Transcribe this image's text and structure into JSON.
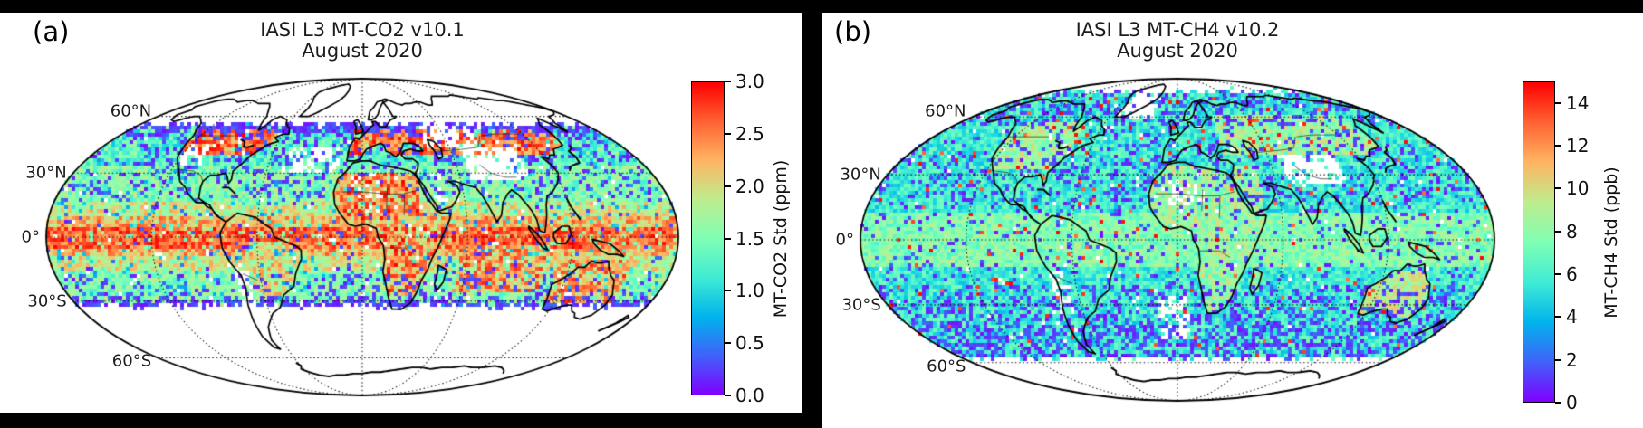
{
  "figure": {
    "background": "#000000",
    "panel_background": "#ffffff"
  },
  "panels": [
    {
      "label": "(a)",
      "title": "IASI L3 MT-CO2 v10.1",
      "subtitle": "August 2020",
      "lat_labels": [
        "60°N",
        "30°N",
        "0°",
        "30°S",
        "60°S"
      ],
      "colorbar": {
        "label": "MT-CO2 Std (ppm)",
        "ticks": [
          "3.0",
          "2.5",
          "2.0",
          "1.5",
          "1.0",
          "0.5",
          "0.0"
        ],
        "vmin": 0,
        "vmax": 3
      }
    },
    {
      "label": "(b)",
      "title": "IASI L3 MT-CH4 v10.2",
      "subtitle": "August 2020",
      "lat_labels": [
        "60°N",
        "30°N",
        "0°",
        "30°S",
        "60°S"
      ],
      "colorbar": {
        "label": "MT-CH4 Std (ppb)",
        "ticks": [
          "14",
          "12",
          "10",
          "8",
          "6",
          "4",
          "2",
          "0"
        ],
        "vmin": 0,
        "vmax": 15
      }
    }
  ],
  "colormap": {
    "name": "rainbow",
    "stops": [
      "#7f00ff",
      "#4062fa",
      "#00b4ec",
      "#40ecd4",
      "#7fffb4",
      "#bfec8e",
      "#ffb462",
      "#ff6232",
      "#ff0000"
    ]
  },
  "chart_data": [
    {
      "type": "heatmap",
      "projection": "Mollweide world map",
      "title": "IASI L3 MT-CO2 v10.1",
      "subtitle": "August 2020",
      "variable": "MT-CO2 Std (ppm)",
      "value_range": [
        0.0,
        3.0
      ],
      "colorbar_ticks": [
        3.0,
        2.5,
        2.0,
        1.5,
        1.0,
        0.5,
        0.0
      ],
      "parallels_labeled": [
        "60°N",
        "30°N",
        "0°",
        "30°S",
        "60°S"
      ],
      "meridian_gridlines_every_deg": 60,
      "data_coverage_lat_range": [
        "~33°S",
        "~55°N"
      ],
      "notable_patterns": [
        "high std (red/orange, 2-3 ppm) band along the equator",
        "red/orange patches over Sahara, central-southern Africa, tropical South America, Indian Ocean, Australia and 40-52N continental land",
        "low std (purple, <0.3 ppm) speckled fringe at northern (~50-55N) and southern (~28-33S) coverage edges",
        "no data (white) poleward of ~55N and ~33S, over Tibet, the Andes, central Asia and subtropical North Atlantic"
      ]
    },
    {
      "type": "heatmap",
      "projection": "Mollweide world map",
      "title": "IASI L3 MT-CH4 v10.2",
      "subtitle": "August 2020",
      "variable": "MT-CH4 Std (ppb)",
      "value_range": [
        0,
        15
      ],
      "colorbar_ticks": [
        14,
        12,
        10,
        8,
        6,
        4,
        2,
        0
      ],
      "parallels_labeled": [
        "60°N",
        "30°N",
        "0°",
        "30°S",
        "60°S"
      ],
      "meridian_gridlines_every_deg": 60,
      "data_coverage_lat_range": [
        "~57°S",
        "~75°N"
      ],
      "notable_patterns": [
        "mostly cyan/green (3-8 ppb) with heavy purple (low std) speckling, strongest 20S-55S and near coverage edges",
        "greener/tan values over northern mid-latitude continents, Africa and Australia",
        "sparse red speckles (>13 ppb) scattered globally",
        "no data (white) over Greenland interior, Tibet, the Andes, parts of the Sahel and poleward of coverage"
      ]
    }
  ]
}
